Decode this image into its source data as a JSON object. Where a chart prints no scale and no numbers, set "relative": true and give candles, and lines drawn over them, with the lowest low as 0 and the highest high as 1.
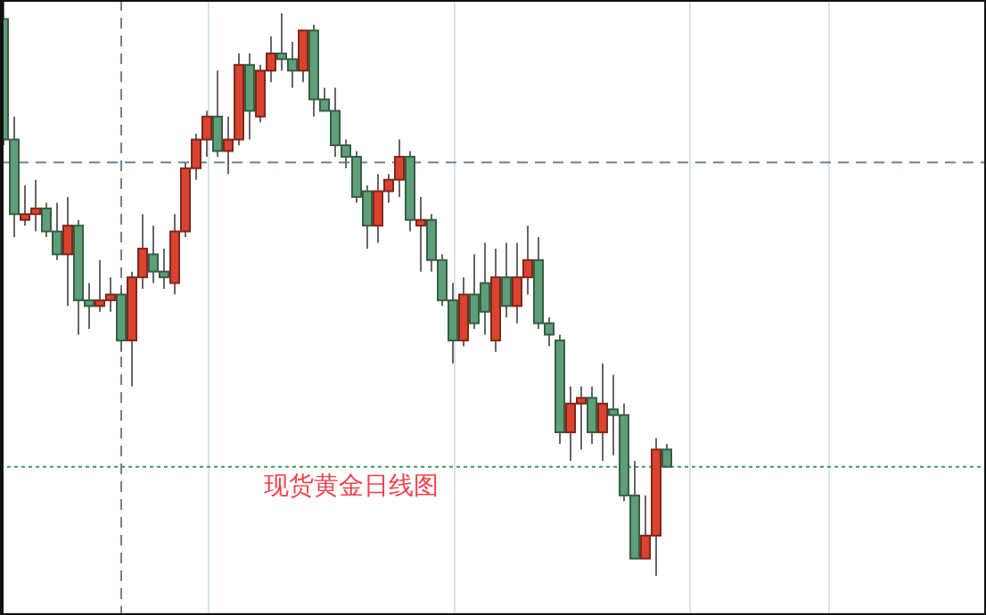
{
  "chart_data": {
    "type": "candlestick",
    "title": "现货黄金日线图",
    "relative": true,
    "categories": [
      null,
      null,
      null,
      null,
      null,
      null,
      null,
      null,
      null,
      null,
      null,
      null,
      null,
      null,
      null,
      null,
      null,
      null,
      null,
      null,
      null,
      null,
      null,
      null,
      null,
      null,
      null,
      null,
      null,
      null,
      null,
      null,
      null,
      null,
      null,
      null,
      null,
      null,
      null,
      null,
      null,
      null,
      null,
      null,
      null,
      null,
      null,
      null,
      null,
      null,
      null,
      null,
      null,
      null,
      null,
      null,
      null,
      null,
      null,
      null,
      null,
      null,
      null
    ],
    "ohlc": [
      [
        0.97,
        1.0,
        0.75,
        0.76
      ],
      [
        0.76,
        0.8,
        0.59,
        0.63
      ],
      [
        0.62,
        0.68,
        0.61,
        0.63
      ],
      [
        0.63,
        0.69,
        0.6,
        0.64
      ],
      [
        0.64,
        0.65,
        0.59,
        0.6
      ],
      [
        0.6,
        0.65,
        0.55,
        0.56
      ],
      [
        0.56,
        0.66,
        0.47,
        0.61
      ],
      [
        0.61,
        0.62,
        0.42,
        0.48
      ],
      [
        0.48,
        0.51,
        0.43,
        0.47
      ],
      [
        0.47,
        0.55,
        0.46,
        0.48
      ],
      [
        0.48,
        0.52,
        0.46,
        0.49
      ],
      [
        0.49,
        0.5,
        0.39,
        0.41
      ],
      [
        0.41,
        0.53,
        0.33,
        0.52
      ],
      [
        0.52,
        0.63,
        0.5,
        0.57
      ],
      [
        0.56,
        0.61,
        0.51,
        0.53
      ],
      [
        0.53,
        0.57,
        0.5,
        0.52
      ],
      [
        0.51,
        0.63,
        0.49,
        0.6
      ],
      [
        0.6,
        0.72,
        0.59,
        0.71
      ],
      [
        0.71,
        0.77,
        0.69,
        0.76
      ],
      [
        0.76,
        0.81,
        0.73,
        0.8
      ],
      [
        0.8,
        0.88,
        0.73,
        0.74
      ],
      [
        0.74,
        0.8,
        0.7,
        0.76
      ],
      [
        0.76,
        0.91,
        0.75,
        0.89
      ],
      [
        0.89,
        0.91,
        0.76,
        0.81
      ],
      [
        0.8,
        0.89,
        0.79,
        0.88
      ],
      [
        0.88,
        0.94,
        0.86,
        0.91
      ],
      [
        0.91,
        0.98,
        0.88,
        0.9
      ],
      [
        0.9,
        0.93,
        0.85,
        0.88
      ],
      [
        0.88,
        0.95,
        0.86,
        0.95
      ],
      [
        0.95,
        0.96,
        0.8,
        0.83
      ],
      [
        0.83,
        0.85,
        0.81,
        0.81
      ],
      [
        0.81,
        0.85,
        0.73,
        0.75
      ],
      [
        0.75,
        0.76,
        0.71,
        0.73
      ],
      [
        0.73,
        0.74,
        0.65,
        0.66
      ],
      [
        0.67,
        0.68,
        0.57,
        0.61
      ],
      [
        0.61,
        0.7,
        0.58,
        0.67
      ],
      [
        0.67,
        0.7,
        0.65,
        0.69
      ],
      [
        0.69,
        0.76,
        0.66,
        0.73
      ],
      [
        0.73,
        0.74,
        0.6,
        0.62
      ],
      [
        0.61,
        0.66,
        0.53,
        0.62
      ],
      [
        0.62,
        0.63,
        0.53,
        0.55
      ],
      [
        0.55,
        0.56,
        0.47,
        0.48
      ],
      [
        0.48,
        0.51,
        0.37,
        0.41
      ],
      [
        0.41,
        0.52,
        0.4,
        0.49
      ],
      [
        0.49,
        0.56,
        0.43,
        0.44
      ],
      [
        0.51,
        0.58,
        0.42,
        0.46
      ],
      [
        0.41,
        0.57,
        0.39,
        0.52
      ],
      [
        0.52,
        0.58,
        0.45,
        0.47
      ],
      [
        0.47,
        0.58,
        0.44,
        0.52
      ],
      [
        0.52,
        0.61,
        0.49,
        0.55
      ],
      [
        0.55,
        0.59,
        0.43,
        0.44
      ],
      [
        0.44,
        0.45,
        0.4,
        0.42
      ],
      [
        0.41,
        0.42,
        0.23,
        0.25
      ],
      [
        0.25,
        0.33,
        0.2,
        0.3
      ],
      [
        0.3,
        0.33,
        0.22,
        0.31
      ],
      [
        0.31,
        0.33,
        0.23,
        0.25
      ],
      [
        0.25,
        0.37,
        0.2,
        0.3
      ],
      [
        0.29,
        0.35,
        0.21,
        0.28
      ],
      [
        0.28,
        0.3,
        0.13,
        0.14
      ],
      [
        0.14,
        0.2,
        0.03,
        0.03
      ],
      [
        0.03,
        0.14,
        0.03,
        0.07
      ],
      [
        0.07,
        0.24,
        0.0,
        0.22
      ],
      [
        0.22,
        0.23,
        0.19,
        0.19
      ]
    ],
    "colors": [
      "#5e9e78",
      "#5e9e78",
      "#d9432f",
      "#d9432f",
      "#5e9e78",
      "#5e9e78",
      "#d9432f",
      "#5e9e78",
      "#5e9e78",
      "#d9432f",
      "#d9432f",
      "#5e9e78",
      "#d9432f",
      "#d9432f",
      "#5e9e78",
      "#5e9e78",
      "#d9432f",
      "#d9432f",
      "#d9432f",
      "#d9432f",
      "#5e9e78",
      "#d9432f",
      "#d9432f",
      "#5e9e78",
      "#d9432f",
      "#d9432f",
      "#5e9e78",
      "#5e9e78",
      "#d9432f",
      "#5e9e78",
      "#5e9e78",
      "#5e9e78",
      "#5e9e78",
      "#5e9e78",
      "#5e9e78",
      "#d9432f",
      "#d9432f",
      "#d9432f",
      "#5e9e78",
      "#d9432f",
      "#5e9e78",
      "#5e9e78",
      "#5e9e78",
      "#d9432f",
      "#5e9e78",
      "#5e9e78",
      "#d9432f",
      "#5e9e78",
      "#d9432f",
      "#d9432f",
      "#5e9e78",
      "#5e9e78",
      "#5e9e78",
      "#d9432f",
      "#d9432f",
      "#5e9e78",
      "#d9432f",
      "#5e9e78",
      "#5e9e78",
      "#5e9e78",
      "#d9432f",
      "#d9432f",
      "#5e9e78"
    ],
    "ref_lines": [
      {
        "axis": "y",
        "value": 0.72,
        "color": "#6f8291",
        "line_style": "dashed"
      },
      {
        "axis": "y",
        "value": 0.19,
        "color": "#3a9a5a",
        "line_style": "dotted"
      }
    ]
  }
}
